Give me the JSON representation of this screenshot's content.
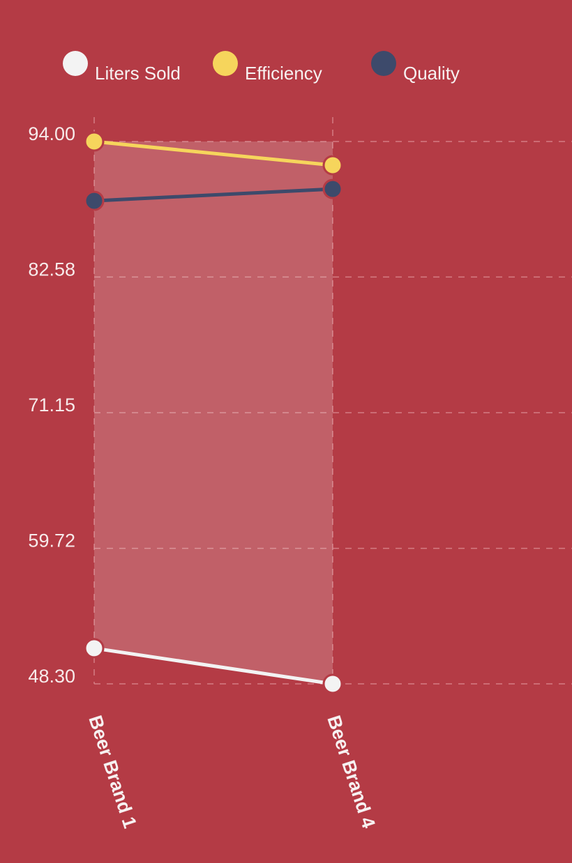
{
  "chart_data": {
    "type": "line",
    "categories": [
      "Beer Brand 1",
      "Beer Brand 4"
    ],
    "series": [
      {
        "name": "Liters Sold",
        "values": [
          51.3,
          48.3
        ],
        "color": "#f3f3f3",
        "area": true
      },
      {
        "name": "Efficiency",
        "values": [
          94.0,
          92.0
        ],
        "color": "#f6d55c",
        "area": false
      },
      {
        "name": "Quality",
        "values": [
          89.0,
          90.0
        ],
        "color": "#3d4a6b",
        "area": false
      }
    ],
    "yticks": [
      "94.00",
      "82.58",
      "71.15",
      "59.72",
      "48.30"
    ],
    "ylim": [
      48.3,
      94.0
    ],
    "grid": true,
    "legend": "top",
    "title": "",
    "xlabel": "",
    "ylabel": ""
  },
  "colors": {
    "background": "#b43b45",
    "area_fill": "#f3f3f3",
    "gridline": "#dd8d93"
  }
}
